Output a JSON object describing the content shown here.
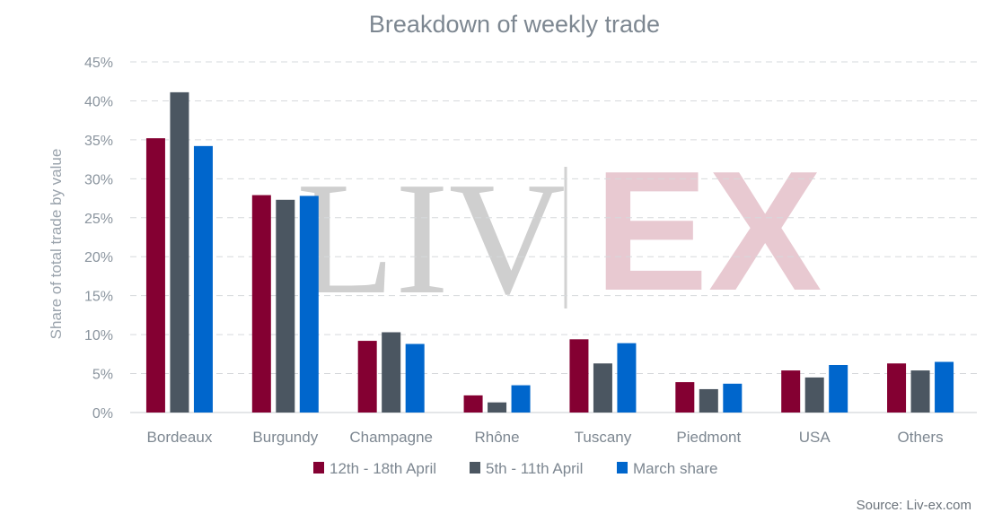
{
  "chart_data": {
    "type": "bar",
    "title": "Breakdown of weekly trade",
    "ylabel": "Share of total trade by value",
    "xlabel": "",
    "ylim": [
      0,
      45
    ],
    "yticks": [
      0,
      5,
      10,
      15,
      20,
      25,
      30,
      35,
      40,
      45
    ],
    "ytick_labels": [
      "0%",
      "5%",
      "10%",
      "15%",
      "20%",
      "25%",
      "30%",
      "35%",
      "40%",
      "45%"
    ],
    "grid": true,
    "legend_position": "bottom",
    "categories": [
      "Bordeaux",
      "Burgundy",
      "Champagne",
      "Rhône",
      "Tuscany",
      "Piedmont",
      "USA",
      "Others"
    ],
    "series": [
      {
        "name": "12th - 18th April",
        "color": "#840032",
        "values": [
          35.2,
          27.9,
          9.2,
          2.2,
          9.4,
          3.9,
          5.4,
          6.3
        ]
      },
      {
        "name": "5th - 11th April",
        "color": "#4b5661",
        "values": [
          41.1,
          27.3,
          10.3,
          1.3,
          6.3,
          3.0,
          4.5,
          5.4
        ]
      },
      {
        "name": "March share",
        "color": "#0066cc",
        "values": [
          34.2,
          27.8,
          8.8,
          3.5,
          8.9,
          3.7,
          6.1,
          6.5
        ]
      }
    ],
    "source": "Source: Liv-ex.com",
    "watermark": {
      "left": "LIV",
      "right": "EX"
    }
  }
}
